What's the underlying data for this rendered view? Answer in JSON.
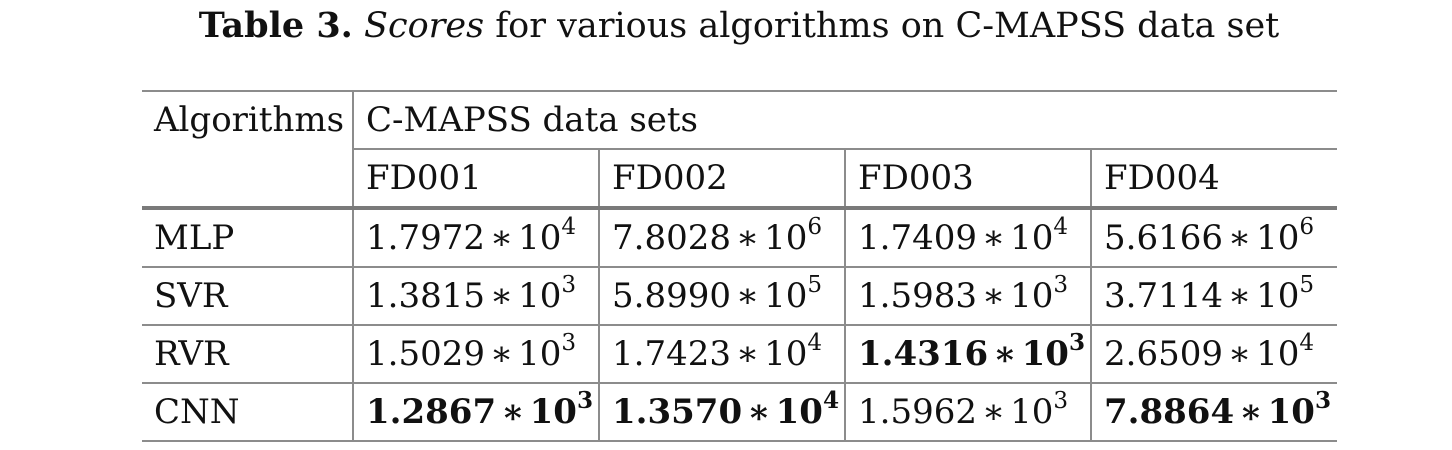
{
  "caption": {
    "label": "Table 3.",
    "emphasis": "Scores",
    "rest": "for various algorithms on C-MAPSS data set"
  },
  "table": {
    "corner_header": "Algorithms",
    "group_header": "C-MAPSS data sets",
    "columns": [
      "FD001",
      "FD002",
      "FD003",
      "FD004"
    ],
    "operator": "∗",
    "base": "10",
    "rows": [
      {
        "algorithm": "MLP",
        "cells": [
          {
            "mantissa": "1.7972",
            "exponent": "4",
            "bold": false
          },
          {
            "mantissa": "7.8028",
            "exponent": "6",
            "bold": false
          },
          {
            "mantissa": "1.7409",
            "exponent": "4",
            "bold": false
          },
          {
            "mantissa": "5.6166",
            "exponent": "6",
            "bold": false
          }
        ]
      },
      {
        "algorithm": "SVR",
        "cells": [
          {
            "mantissa": "1.3815",
            "exponent": "3",
            "bold": false
          },
          {
            "mantissa": "5.8990",
            "exponent": "5",
            "bold": false
          },
          {
            "mantissa": "1.5983",
            "exponent": "3",
            "bold": false
          },
          {
            "mantissa": "3.7114",
            "exponent": "5",
            "bold": false
          }
        ]
      },
      {
        "algorithm": "RVR",
        "cells": [
          {
            "mantissa": "1.5029",
            "exponent": "3",
            "bold": false
          },
          {
            "mantissa": "1.7423",
            "exponent": "4",
            "bold": false
          },
          {
            "mantissa": "1.4316",
            "exponent": "3",
            "bold": true
          },
          {
            "mantissa": "2.6509",
            "exponent": "4",
            "bold": false
          }
        ]
      },
      {
        "algorithm": "CNN",
        "cells": [
          {
            "mantissa": "1.2867",
            "exponent": "3",
            "bold": true
          },
          {
            "mantissa": "1.3570",
            "exponent": "4",
            "bold": true
          },
          {
            "mantissa": "1.5962",
            "exponent": "3",
            "bold": false
          },
          {
            "mantissa": "7.8864",
            "exponent": "3",
            "bold": true
          }
        ]
      }
    ]
  }
}
